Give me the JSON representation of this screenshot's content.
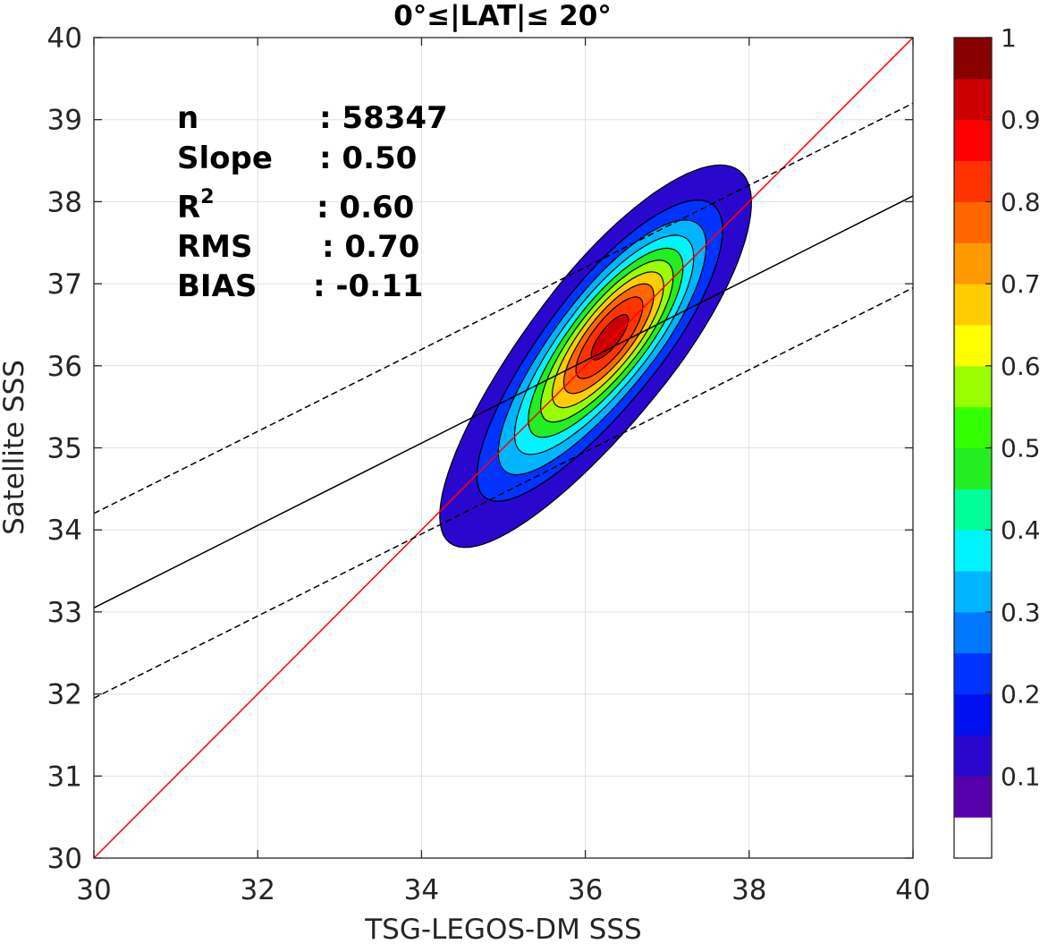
{
  "chart_data": {
    "type": "contour-scatter",
    "title": "0°≤|LAT|≤ 20°",
    "xlabel": "TSG-LEGOS-DM SSS",
    "ylabel": "Satellite SSS",
    "xlim": [
      30,
      40
    ],
    "ylim": [
      30,
      40
    ],
    "xticks": [
      "30",
      "32",
      "34",
      "36",
      "38",
      "40"
    ],
    "yticks": [
      "30",
      "31",
      "32",
      "33",
      "34",
      "35",
      "36",
      "37",
      "38",
      "39",
      "40"
    ],
    "grid": true,
    "stats": [
      {
        "label": "n",
        "value": ": 58347"
      },
      {
        "label": "Slope",
        "value": ": 0.50"
      },
      {
        "label": "R",
        "sup": "2",
        "value": ": 0.60"
      },
      {
        "label": "RMS",
        "value": ": 0.70"
      },
      {
        "label": "BIAS",
        "value": ": -0.11"
      }
    ],
    "lines": [
      {
        "kind": "identity",
        "color": "#ff0000",
        "style": "solid",
        "x": [
          30,
          40
        ],
        "y": [
          30,
          40
        ]
      },
      {
        "kind": "regression",
        "color": "#000000",
        "style": "solid",
        "x": [
          30,
          40
        ],
        "y": [
          33.05,
          38.07
        ]
      },
      {
        "kind": "regression-upper",
        "color": "#000000",
        "style": "dashed",
        "x": [
          30,
          40
        ],
        "y": [
          34.2,
          39.2
        ]
      },
      {
        "kind": "regression-lower",
        "color": "#000000",
        "style": "dashed",
        "x": [
          30,
          40
        ],
        "y": [
          31.95,
          36.95
        ]
      }
    ],
    "density": {
      "center": [
        36.3,
        36.35
      ],
      "peak": 1.0,
      "levels": [
        0.05,
        0.15,
        0.25,
        0.35,
        0.45,
        0.55,
        0.65,
        0.75,
        0.85,
        0.95
      ]
    },
    "colorbar": {
      "ticks": [
        "0.1",
        "0.2",
        "0.3",
        "0.4",
        "0.5",
        "0.6",
        "0.7",
        "0.8",
        "0.9",
        "1"
      ],
      "tick_values": [
        0.1,
        0.2,
        0.3,
        0.4,
        0.5,
        0.6,
        0.7,
        0.8,
        0.9,
        1.0
      ],
      "range": [
        0,
        1
      ],
      "colors": [
        "#ffffff",
        "#5500aa",
        "#2a07cc",
        "#0010f0",
        "#0033ff",
        "#0077ff",
        "#00b4ff",
        "#00f4ff",
        "#00ff99",
        "#22ee22",
        "#33ff00",
        "#99ff00",
        "#ffff00",
        "#ffcc00",
        "#ff9900",
        "#ff6600",
        "#ff3300",
        "#ff0000",
        "#cc0000",
        "#880000"
      ]
    }
  }
}
